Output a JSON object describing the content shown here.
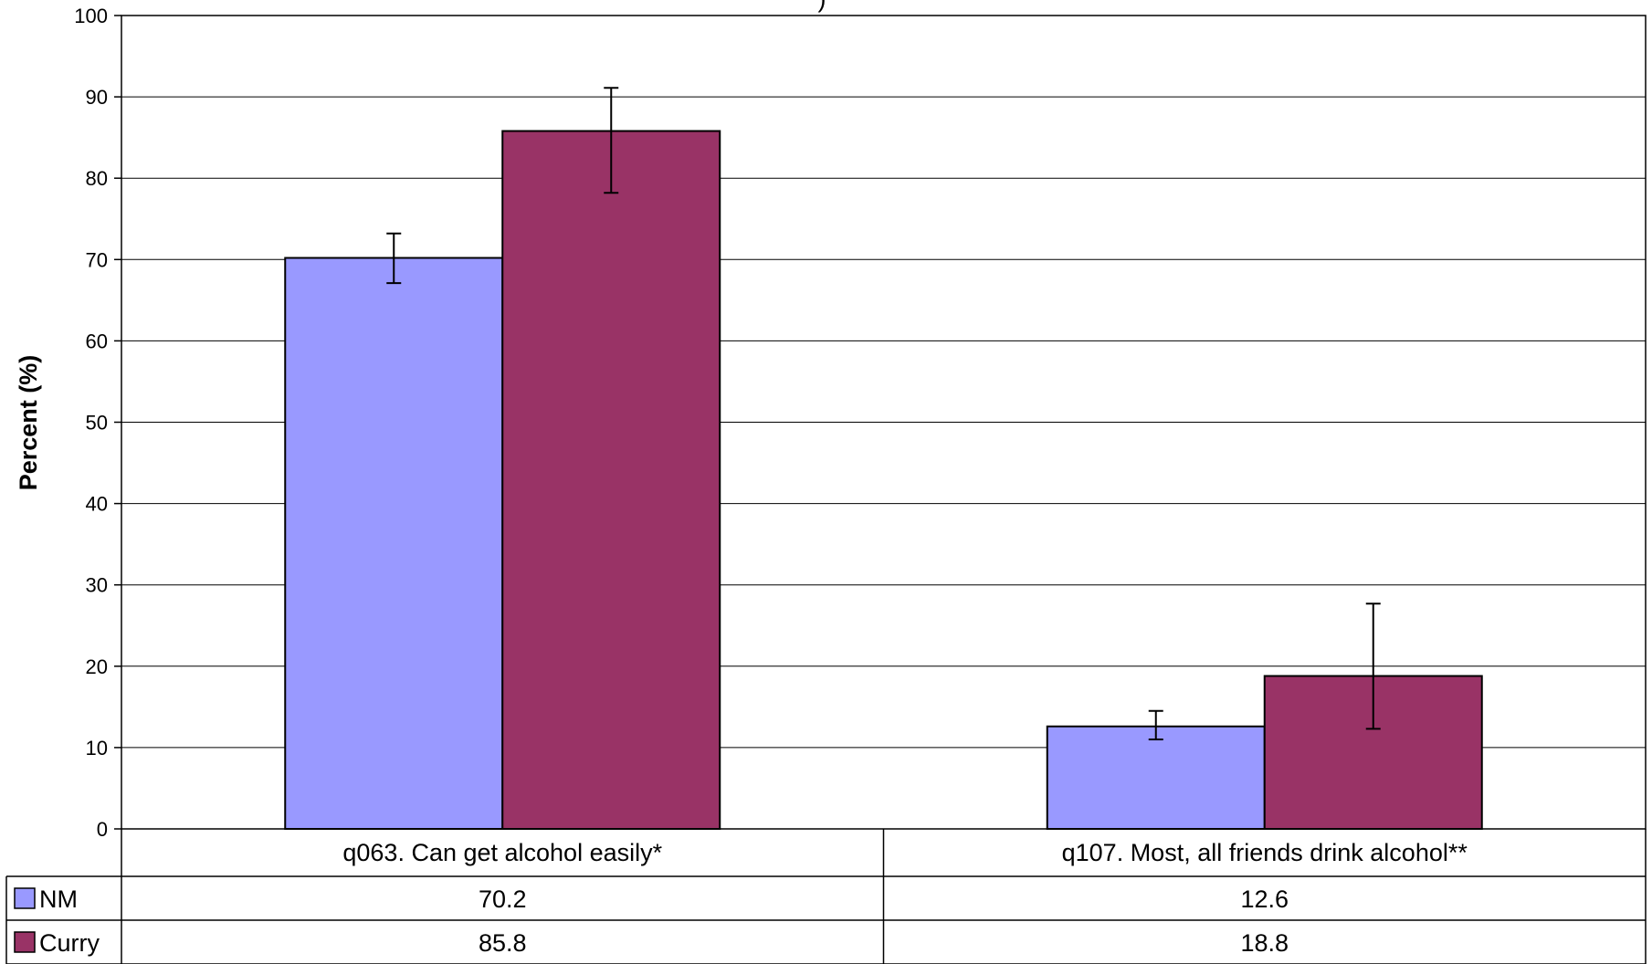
{
  "chart_data": {
    "type": "bar",
    "title_fragment": ")",
    "ylabel": "Percent (%)",
    "ylim": [
      0,
      100
    ],
    "yticks": [
      "0",
      "10",
      "20",
      "30",
      "40",
      "50",
      "60",
      "70",
      "80",
      "90",
      "100"
    ],
    "grid": true,
    "categories": [
      "q063. Can get alcohol easily*",
      "q107. Most, all friends drink alcohol**"
    ],
    "series": [
      {
        "name": "NM",
        "color": "#9999ff",
        "values": [
          70.2,
          12.6
        ],
        "labels": [
          "70.2",
          "12.6"
        ],
        "error_low": [
          67.1,
          11.0
        ],
        "error_high": [
          73.2,
          14.5
        ]
      },
      {
        "name": "Curry",
        "color": "#993366",
        "values": [
          85.8,
          18.8
        ],
        "labels": [
          "85.8",
          "18.8"
        ],
        "error_low": [
          78.2,
          12.3
        ],
        "error_high": [
          91.1,
          27.7
        ]
      }
    ],
    "legend": "data-table"
  }
}
